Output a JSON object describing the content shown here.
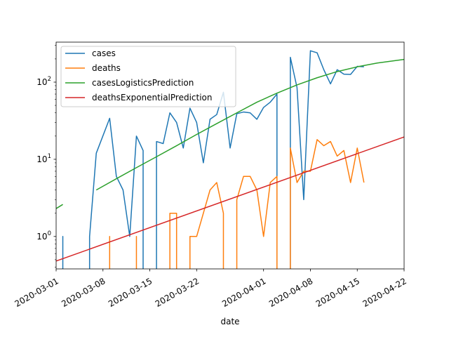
{
  "chart_data": {
    "type": "line",
    "xlabel": "date",
    "ylabel": "",
    "y_scale": "log",
    "xlim": [
      "2020-03-01",
      "2020-04-22"
    ],
    "ylim": [
      0.38,
      330
    ],
    "x_ticks": [
      "2020-03-01",
      "2020-03-08",
      "2020-03-15",
      "2020-03-22",
      "2020-04-01",
      "2020-04-08",
      "2020-04-15",
      "2020-04-22"
    ],
    "y_ticks": [
      {
        "value": 1,
        "base": "10",
        "exp": "0"
      },
      {
        "value": 10,
        "base": "10",
        "exp": "1"
      },
      {
        "value": 100,
        "base": "10",
        "exp": "2"
      }
    ],
    "grid": false,
    "legend_position": "upper-left",
    "series": [
      {
        "name": "cases",
        "color": "#1f77b4",
        "points": [
          [
            "2020-03-02",
            0.2
          ],
          [
            "2020-03-02",
            1
          ],
          [
            "2020-03-02",
            0.2
          ],
          [
            "2020-03-06",
            0.2
          ],
          [
            "2020-03-06",
            1
          ],
          [
            "2020-03-07",
            12
          ],
          [
            "2020-03-09",
            34
          ],
          [
            "2020-03-10",
            6
          ],
          [
            "2020-03-11",
            4
          ],
          [
            "2020-03-12",
            1
          ],
          [
            "2020-03-13",
            20
          ],
          [
            "2020-03-14",
            13
          ],
          [
            "2020-03-14",
            0.2
          ],
          [
            "2020-03-16",
            0.2
          ],
          [
            "2020-03-16",
            17
          ],
          [
            "2020-03-17",
            16
          ],
          [
            "2020-03-18",
            40
          ],
          [
            "2020-03-19",
            30
          ],
          [
            "2020-03-20",
            14
          ],
          [
            "2020-03-21",
            46
          ],
          [
            "2020-03-22",
            30
          ],
          [
            "2020-03-23",
            9
          ],
          [
            "2020-03-24",
            33
          ],
          [
            "2020-03-25",
            38
          ],
          [
            "2020-03-26",
            74
          ],
          [
            "2020-03-27",
            14
          ],
          [
            "2020-03-28",
            39
          ],
          [
            "2020-03-29",
            41
          ],
          [
            "2020-03-30",
            40
          ],
          [
            "2020-03-31",
            33
          ],
          [
            "2020-04-01",
            47
          ],
          [
            "2020-04-02",
            55
          ],
          [
            "2020-04-03",
            70
          ],
          [
            "2020-04-03",
            0.2
          ],
          [
            "2020-04-05",
            0.2
          ],
          [
            "2020-04-05",
            210
          ],
          [
            "2020-04-06",
            85
          ],
          [
            "2020-04-07",
            3
          ],
          [
            "2020-04-08",
            255
          ],
          [
            "2020-04-09",
            240
          ],
          [
            "2020-04-10",
            145
          ],
          [
            "2020-04-11",
            95
          ],
          [
            "2020-04-12",
            145
          ],
          [
            "2020-04-13",
            127
          ],
          [
            "2020-04-14",
            126
          ],
          [
            "2020-04-15",
            160
          ],
          [
            "2020-04-16",
            158
          ]
        ]
      },
      {
        "name": "deaths",
        "color": "#ff7f0e",
        "points": [
          [
            "2020-03-09",
            0.2
          ],
          [
            "2020-03-09",
            1
          ],
          [
            "2020-03-09",
            0.2
          ],
          [
            "2020-03-13",
            0.2
          ],
          [
            "2020-03-13",
            1
          ],
          [
            "2020-03-13",
            0.2
          ],
          [
            "2020-03-18",
            0.2
          ],
          [
            "2020-03-18",
            2
          ],
          [
            "2020-03-19",
            2
          ],
          [
            "2020-03-19",
            0.2
          ],
          [
            "2020-03-21",
            0.2
          ],
          [
            "2020-03-21",
            1
          ],
          [
            "2020-03-22",
            1
          ],
          [
            "2020-03-24",
            4
          ],
          [
            "2020-03-25",
            5
          ],
          [
            "2020-03-26",
            2
          ],
          [
            "2020-03-26",
            0.2
          ],
          [
            "2020-03-28",
            0.2
          ],
          [
            "2020-03-28",
            3
          ],
          [
            "2020-03-29",
            6
          ],
          [
            "2020-03-30",
            6
          ],
          [
            "2020-03-31",
            4
          ],
          [
            "2020-04-01",
            1
          ],
          [
            "2020-04-02",
            5
          ],
          [
            "2020-04-03",
            6
          ],
          [
            "2020-04-03",
            0.2
          ],
          [
            "2020-04-05",
            0.2
          ],
          [
            "2020-04-05",
            14
          ],
          [
            "2020-04-06",
            5
          ],
          [
            "2020-04-07",
            7
          ],
          [
            "2020-04-08",
            7
          ],
          [
            "2020-04-09",
            18
          ],
          [
            "2020-04-10",
            15
          ],
          [
            "2020-04-11",
            17
          ],
          [
            "2020-04-12",
            11
          ],
          [
            "2020-04-13",
            13
          ],
          [
            "2020-04-14",
            5
          ],
          [
            "2020-04-15",
            14
          ],
          [
            "2020-04-16",
            5
          ]
        ]
      },
      {
        "name": "casesLogisticsPrediction",
        "color": "#2ca02c",
        "segments": [
          [
            [
              "2020-03-01",
              2.3
            ],
            [
              "2020-03-02",
              2.6
            ]
          ],
          [
            [
              "2020-03-07",
              4.0
            ],
            [
              "2020-03-10",
              5.6
            ],
            [
              "2020-03-13",
              7.8
            ],
            [
              "2020-03-16",
              10.8
            ],
            [
              "2020-03-19",
              15
            ],
            [
              "2020-03-22",
              21
            ],
            [
              "2020-03-25",
              29
            ],
            [
              "2020-03-28",
              40
            ],
            [
              "2020-03-31",
              55
            ],
            [
              "2020-04-03",
              72
            ],
            [
              "2020-04-06",
              92
            ],
            [
              "2020-04-09",
              114
            ],
            [
              "2020-04-12",
              137
            ],
            [
              "2020-04-15",
              158
            ],
            [
              "2020-04-18",
              177
            ],
            [
              "2020-04-22",
              197
            ]
          ]
        ]
      },
      {
        "name": "deathsExponentialPrediction",
        "color": "#d62728",
        "points": [
          [
            "2020-03-01",
            0.48
          ],
          [
            "2020-04-22",
            19.5
          ]
        ]
      }
    ]
  }
}
